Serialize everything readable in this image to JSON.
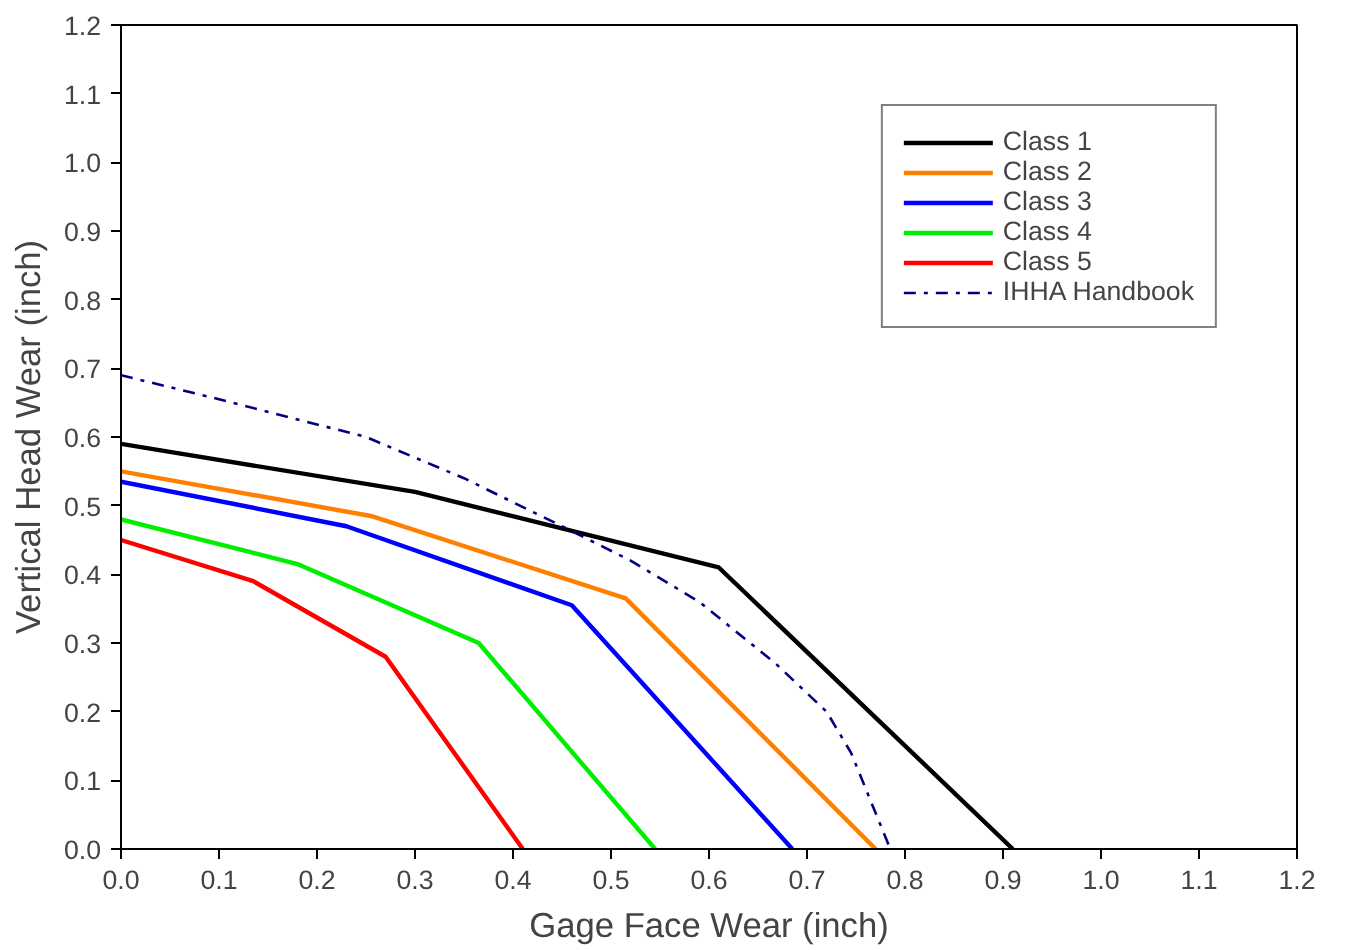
{
  "chart_data": {
    "type": "line",
    "xlabel": "Gage Face Wear (inch)",
    "ylabel": "Vertical Head Wear (inch)",
    "xlim": [
      0,
      1.2
    ],
    "ylim": [
      0,
      1.2
    ],
    "xticks": [
      {
        "value": 0,
        "label": "0.0"
      },
      0.1,
      0.2,
      0.3,
      0.4,
      0.5,
      0.6,
      0.7,
      0.8,
      0.9,
      {
        "value": 1,
        "label": "1.0"
      },
      1.1,
      1.2
    ],
    "yticks": [
      {
        "value": 0,
        "label": "0.0"
      },
      0.1,
      0.2,
      0.3,
      0.4,
      0.5,
      0.6,
      0.7,
      0.8,
      0.9,
      {
        "value": 1,
        "label": "1.0"
      },
      1.1,
      1.2
    ],
    "grid": false,
    "legend": "top right",
    "marker": "none",
    "series": [
      {
        "name": "Class 1",
        "color": "#000000",
        "x": [
          0,
          0.3,
          0.61,
          0.91
        ],
        "values": [
          0.59,
          0.52,
          0.41,
          0
        ]
      },
      {
        "name": "Class 2",
        "color": "#ff8000",
        "x": [
          0,
          0.255,
          0.515,
          0.77
        ],
        "values": [
          0.55,
          0.485,
          0.365,
          0
        ]
      },
      {
        "name": "Class 3",
        "color": "#0000ff",
        "x": [
          0,
          0.23,
          0.46,
          0.685
        ],
        "values": [
          0.535,
          0.47,
          0.355,
          0
        ]
      },
      {
        "name": "Class 4",
        "color": "#00ee00",
        "x": [
          0,
          0.18,
          0.365,
          0.545
        ],
        "values": [
          0.48,
          0.415,
          0.3,
          0
        ]
      },
      {
        "name": "Class 5",
        "color": "#ff0000",
        "x": [
          0,
          0.135,
          0.27,
          0.41
        ],
        "values": [
          0.45,
          0.39,
          0.28,
          0
        ]
      },
      {
        "name": "IHHA Handbook",
        "color": "#000080",
        "line_style": "dashdot",
        "x": [
          0,
          0.1,
          0.25,
          0.35,
          0.45,
          0.52,
          0.59,
          0.668,
          0.72,
          0.745,
          0.785
        ],
        "values": [
          0.69,
          0.655,
          0.6,
          0.54,
          0.47,
          0.42,
          0.36,
          0.27,
          0.2,
          0.14,
          0
        ]
      }
    ]
  }
}
